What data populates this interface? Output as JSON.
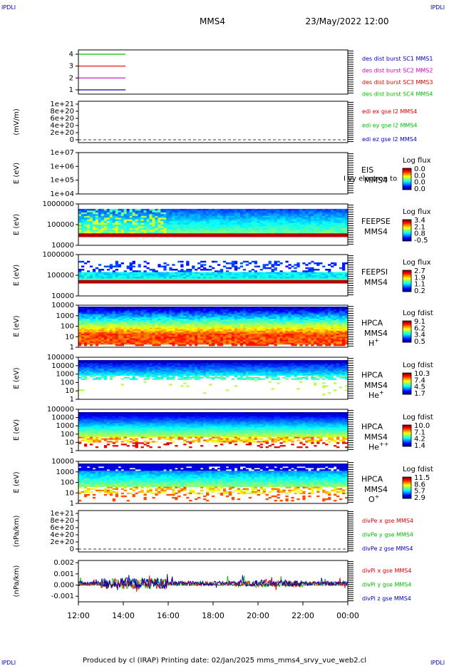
{
  "corner_left": "IPDLI",
  "corner_right": "IPDLI",
  "corner_left_bottom": "IPDLI",
  "corner_right_bottom": "IPDLI",
  "header": {
    "spacecraft": "MMS4",
    "datetime": "23/May/2022 12:00"
  },
  "footer": {
    "text": "Produced by cl (IRAP)   Printing date: 02/Jan/2025   mms_mms4_srvy_vue_web2.cl"
  },
  "time_axis": {
    "ticks": [
      "12:00",
      "14:00",
      "16:00",
      "18:00",
      "20:00",
      "22:00",
      "00:00"
    ],
    "start_hour": 12,
    "end_hour": 24
  },
  "colors": {
    "green": "#00c000",
    "red": "#e00000",
    "magenta": "#d000d0",
    "blue": "#0000c0"
  },
  "chart_data": [
    {
      "type": "line",
      "id": "burst",
      "yticks": [
        "1",
        "2",
        "3",
        "4"
      ],
      "legend": [
        {
          "text": "des dist burst SC1 MMS1",
          "color": "#0000c0"
        },
        {
          "text": "des dist burst SC2 MMS2",
          "color": "#d000d0"
        },
        {
          "text": "des dist burst SC3 MMS3",
          "color": "#e00000"
        },
        {
          "text": "des dist burst SC4 MMS4",
          "color": "#00c000"
        }
      ],
      "series": [
        {
          "level": 4,
          "color": "#00c000",
          "x": [
            12.0,
            14.1
          ]
        },
        {
          "level": 3,
          "color": "#e00000",
          "x": [
            12.0,
            14.1
          ]
        },
        {
          "level": 2,
          "color": "#d000d0",
          "x": [
            12.0,
            14.1
          ]
        },
        {
          "level": 1,
          "color": "#0000c0",
          "x": [
            12.0,
            14.1
          ]
        }
      ]
    },
    {
      "type": "line",
      "id": "edi",
      "ylabel": "(mV/m)",
      "yticks": [
        "1e+21",
        "8e+20",
        "6e+20",
        "4e+20",
        "2e+20",
        "0"
      ],
      "legend": [
        {
          "text": "edi ex gse l2 MMS4",
          "color": "#e00000"
        },
        {
          "text": "edi ey gse l2 MMS4",
          "color": "#00c000"
        },
        {
          "text": "edi ez gse l2 MMS4",
          "color": "#0000c0"
        }
      ]
    },
    {
      "type": "heatmap",
      "id": "eis",
      "ylabel": "E (eV)",
      "yticks": [
        "1e+07",
        "1e+06",
        "1e+05",
        "1e+04"
      ],
      "right_labels": [
        "EIS",
        "MMS4"
      ],
      "overlap_text": "I vy electron to",
      "colorbar_title": "Log flux",
      "colorbar_ticks": [
        "0.0",
        "0.0",
        "0.0",
        "0.0"
      ]
    },
    {
      "type": "heatmap",
      "id": "feepse",
      "ylabel": "E (eV)",
      "yticks": [
        "1000000",
        "100000",
        "10000"
      ],
      "right_labels": [
        "FEEPSE",
        "MMS4"
      ],
      "colorbar_title": "Log flux",
      "colorbar_ticks": [
        "3.4",
        "2.1",
        "0.8",
        "-0.5"
      ]
    },
    {
      "type": "heatmap",
      "id": "feepsi",
      "ylabel": "E (eV)",
      "yticks": [
        "1000000",
        "100000",
        "10000"
      ],
      "right_labels": [
        "FEEPSI",
        "MMS4"
      ],
      "colorbar_title": "Log flux",
      "colorbar_ticks": [
        "2.7",
        "1.9",
        "1.1",
        "0.2"
      ]
    },
    {
      "type": "heatmap",
      "id": "hpca_h",
      "ylabel": "E (eV)",
      "yticks": [
        "10000",
        "1000",
        "100",
        "10",
        "1"
      ],
      "right_labels": [
        "HPCA",
        "MMS4"
      ],
      "species": "H",
      "species_charge": "+",
      "colorbar_title": "Log fdist",
      "colorbar_ticks": [
        "9.1",
        "6.2",
        "3.4",
        "0.5"
      ]
    },
    {
      "type": "heatmap",
      "id": "hpca_he1",
      "ylabel": "E (eV)",
      "yticks": [
        "100000",
        "10000",
        "1000",
        "100",
        "10",
        "1"
      ],
      "right_labels": [
        "HPCA",
        "MMS4"
      ],
      "species": "He",
      "species_charge": "+",
      "colorbar_title": "Log fdist",
      "colorbar_ticks": [
        "10.3",
        "7.4",
        "4.5",
        "1.7"
      ]
    },
    {
      "type": "heatmap",
      "id": "hpca_he2",
      "ylabel": "E (eV)",
      "yticks": [
        "100000",
        "10000",
        "1000",
        "100",
        "10",
        "1"
      ],
      "right_labels": [
        "HPCA",
        "MMS4"
      ],
      "species": "He",
      "species_charge": "++",
      "colorbar_title": "Log fdist",
      "colorbar_ticks": [
        "10.0",
        "7.1",
        "4.2",
        "1.4"
      ]
    },
    {
      "type": "heatmap",
      "id": "hpca_o",
      "ylabel": "E (eV)",
      "yticks": [
        "10000",
        "1000",
        "100",
        "10",
        "1"
      ],
      "right_labels": [
        "HPCA",
        "MMS4"
      ],
      "species": "O",
      "species_charge": "+",
      "colorbar_title": "Log fdist",
      "colorbar_ticks": [
        "11.5",
        "8.6",
        "5.7",
        "2.9"
      ]
    },
    {
      "type": "line",
      "id": "divpe",
      "ylabel": "(nPa/km)",
      "yticks": [
        "1e+21",
        "8e+20",
        "6e+20",
        "4e+20",
        "2e+20",
        "0"
      ],
      "legend": [
        {
          "text": "divPe x gse MMS4",
          "color": "#e00000"
        },
        {
          "text": "divPe y gse MMS4",
          "color": "#00c000"
        },
        {
          "text": "divPe z gse MMS4",
          "color": "#0000c0"
        }
      ]
    },
    {
      "type": "line",
      "id": "divpi",
      "ylabel": "(nPa/km)",
      "yticks": [
        "0.002",
        "0.001",
        "0.000",
        "-0.001"
      ],
      "ylim": [
        -0.0015,
        0.0022
      ],
      "legend": [
        {
          "text": "divPi x gse MMS4",
          "color": "#e00000"
        },
        {
          "text": "divPi y gse MMS4",
          "color": "#00c000"
        },
        {
          "text": "divPi z gse MMS4",
          "color": "#0000c0"
        }
      ]
    }
  ]
}
